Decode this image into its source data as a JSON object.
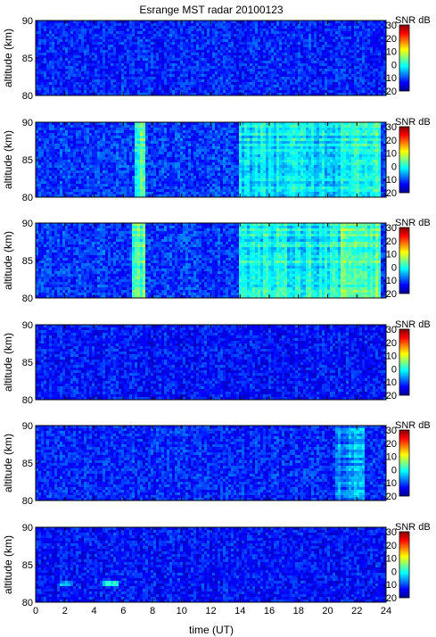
{
  "chart_data": {
    "type": "heatmap",
    "title": "Esrange MST radar 20100123",
    "xlabel": "time (UT)",
    "ylabel": "altitude (km)",
    "xlim": [
      0,
      24
    ],
    "ylim": [
      80,
      90
    ],
    "x_ticks": [
      "0",
      "2",
      "4",
      "6",
      "8",
      "10",
      "12",
      "14",
      "16",
      "18",
      "20",
      "22",
      "24"
    ],
    "y_ticks": [
      "80",
      "85",
      "90"
    ],
    "colorbar": {
      "label": "SNR dB",
      "range": [
        -20,
        30
      ],
      "ticks": [
        "30",
        "20",
        "10",
        "0",
        "-10",
        "-20"
      ],
      "colormap": "jet"
    },
    "panels": [
      {
        "background_snr_db": -12,
        "features": []
      },
      {
        "background_snr_db": -11,
        "features": [
          {
            "t_start": 6.7,
            "t_end": 7.5,
            "snr_db": 2
          },
          {
            "t_start": 14.0,
            "t_end": 20.9,
            "snr_db": -2
          },
          {
            "t_start": 20.9,
            "t_end": 23.6,
            "snr_db": 1
          }
        ]
      },
      {
        "background_snr_db": -11,
        "features": [
          {
            "t_start": 6.6,
            "t_end": 7.6,
            "snr_db": 3
          },
          {
            "t_start": 14.0,
            "t_end": 20.9,
            "snr_db": -1
          },
          {
            "t_start": 20.9,
            "t_end": 23.6,
            "snr_db": 3
          }
        ]
      },
      {
        "background_snr_db": -13,
        "features": []
      },
      {
        "background_snr_db": -12,
        "features": [
          {
            "t_start": 20.5,
            "t_end": 22.5,
            "snr_db": -7
          }
        ]
      },
      {
        "background_snr_db": -13,
        "features": [
          {
            "t_start": 4.5,
            "t_end": 5.6,
            "alt_center": 82.6,
            "alt_half_width": 0.3,
            "snr_db": 1
          },
          {
            "t_start": 1.7,
            "t_end": 2.5,
            "alt_center": 82.5,
            "alt_half_width": 0.2,
            "snr_db": -6
          }
        ]
      }
    ]
  }
}
